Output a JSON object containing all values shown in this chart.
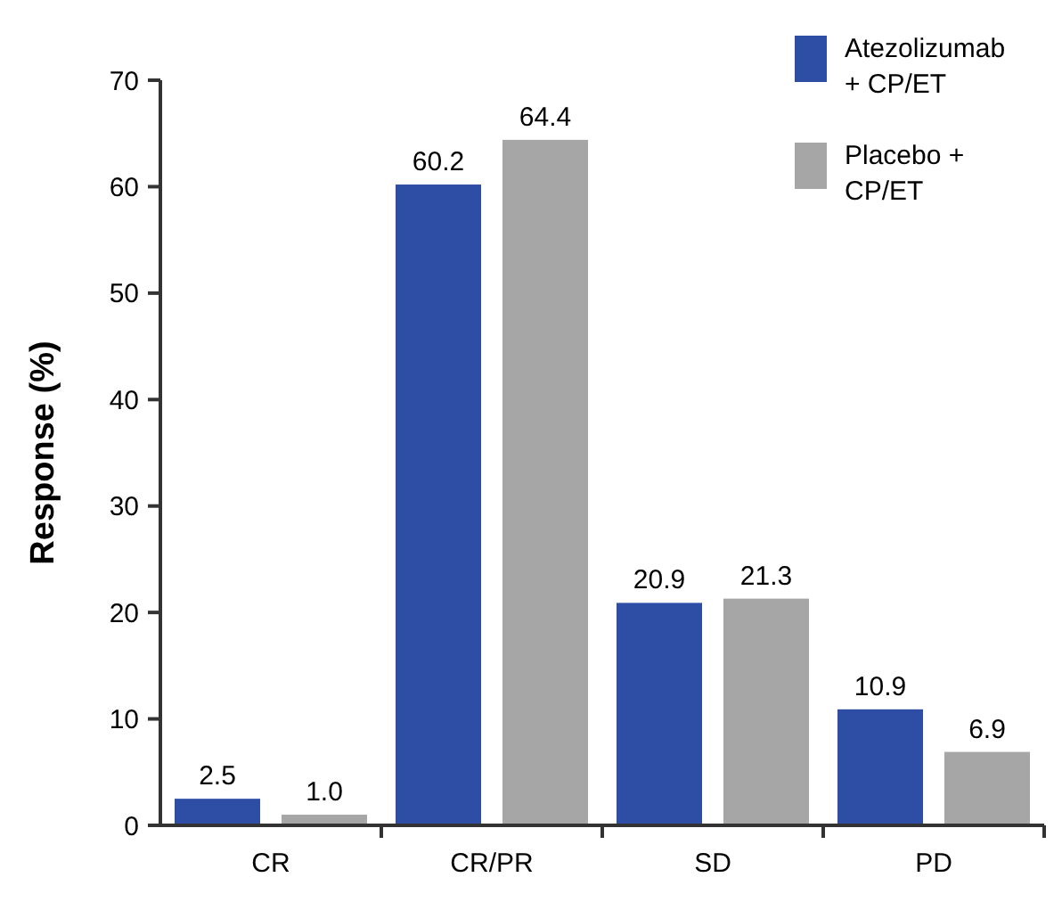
{
  "chart_data": {
    "type": "bar",
    "ylabel": "Response (%)",
    "categories": [
      "CR",
      "CR/PR",
      "SD",
      "PD"
    ],
    "series": [
      {
        "name": "Atezolizumab + CP/ET",
        "color": "#2e4ea6",
        "values": [
          2.5,
          60.2,
          20.9,
          10.9
        ],
        "value_labels": [
          "2.5",
          "60.2",
          "20.9",
          "10.9"
        ]
      },
      {
        "name": "Placebo + CP/ET",
        "color": "#a6a6a6",
        "values": [
          1.0,
          64.4,
          21.3,
          6.9
        ],
        "value_labels": [
          "1.0",
          "64.4",
          "21.3",
          "6.9"
        ]
      }
    ],
    "ylim": [
      0,
      70
    ],
    "yticks": [
      0,
      10,
      20,
      30,
      40,
      50,
      60,
      70
    ],
    "legend": "top right",
    "grid": false
  }
}
